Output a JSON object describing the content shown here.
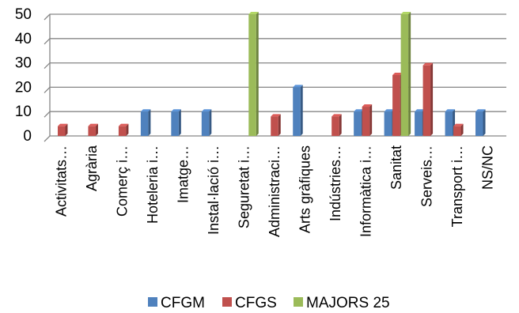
{
  "chart_data": {
    "type": "bar",
    "categories": [
      "Activitats…",
      "Agrària",
      "Comerç i…",
      "Hoteleria i…",
      "Imatge…",
      "Instal·lació i…",
      "Seguretat i…",
      "Administraci…",
      "Arts gràfiques",
      "Indústries…",
      "Informàtica i…",
      "Sanitat",
      "Serveis…",
      "Transport i…",
      "NS/NC"
    ],
    "series": [
      {
        "name": "CFGM",
        "color": "#4F81BD",
        "values": [
          0,
          0,
          0,
          10,
          10,
          10,
          0,
          0,
          20,
          0,
          10,
          10,
          10,
          10,
          10
        ]
      },
      {
        "name": "CFGS",
        "color": "#C0504D",
        "values": [
          4,
          4,
          4,
          0,
          0,
          0,
          0,
          8,
          0,
          8,
          12,
          25,
          29,
          4,
          0
        ]
      },
      {
        "name": "MAJORS 25",
        "color": "#9BBB59",
        "values": [
          0,
          0,
          0,
          0,
          0,
          0,
          50,
          0,
          0,
          0,
          0,
          50,
          0,
          0,
          0
        ]
      }
    ],
    "yticks": [
      0,
      10,
      20,
      30,
      40,
      50
    ],
    "ylim": [
      0,
      50
    ],
    "title": "",
    "xlabel": "",
    "ylabel": "",
    "grid": true,
    "legend_position": "bottom"
  }
}
